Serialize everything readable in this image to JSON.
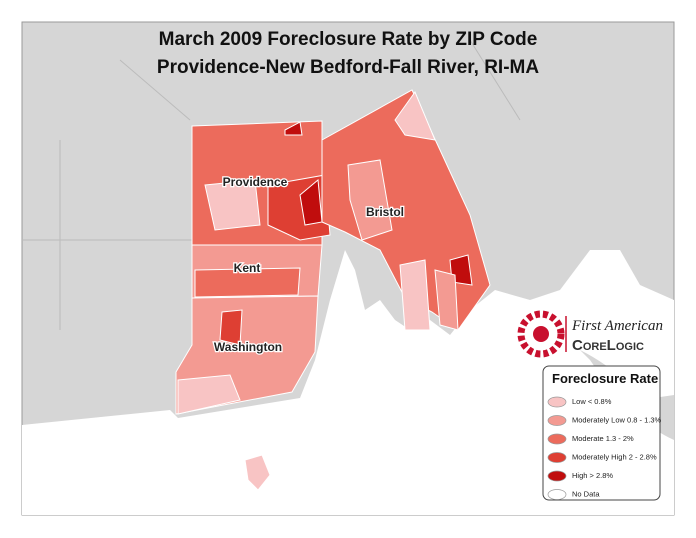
{
  "header": {
    "title": "March 2009 Foreclosure Rate by ZIP Code",
    "subtitle": "Providence-New Bedford-Fall River, RI-MA"
  },
  "labels": [
    "Providence",
    "Bristol",
    "Kent",
    "Washington"
  ],
  "legend": {
    "title": "Foreclosure Rate",
    "items": [
      {
        "label": "Low  < 0.8%",
        "color": "#f8c4c4"
      },
      {
        "label": "Moderately Low  0.8 - 1.3%",
        "color": "#f39a92"
      },
      {
        "label": "Moderate  1.3 - 2%",
        "color": "#ec6b5c"
      },
      {
        "label": "Moderately High  2 - 2.8%",
        "color": "#de3f33"
      },
      {
        "label": "High  > 2.8%",
        "color": "#c00d0d"
      },
      {
        "label": "No Data",
        "color": "#ffffff"
      }
    ]
  },
  "logo": {
    "line1": "First American",
    "line2": "CoreLogic"
  }
}
